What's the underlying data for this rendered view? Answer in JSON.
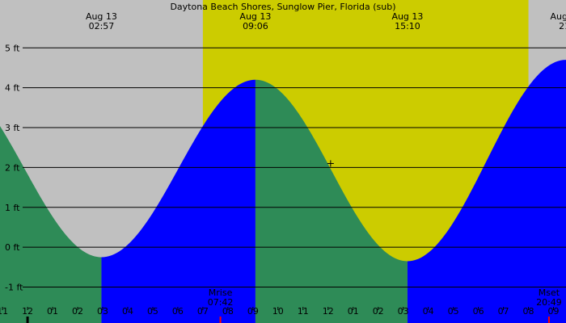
{
  "chart_data": {
    "type": "area",
    "title": "Daytona Beach Shores, Sunglow Pier, Florida (sub)",
    "xlabel": "",
    "ylabel": "",
    "unit": "ft",
    "ylim": [
      -1.9,
      6.2
    ],
    "xlim_hours": [
      -1.1,
      21.5
    ],
    "y_ticks": [
      "5 ft",
      "4 ft",
      "3 ft",
      "2 ft",
      "1 ft",
      "0 ft",
      "-1 ft"
    ],
    "y_tick_values": [
      5,
      4,
      3,
      2,
      1,
      0,
      -1
    ],
    "x_ticks": [
      "11",
      "12",
      "01",
      "02",
      "03",
      "04",
      "05",
      "06",
      "07",
      "08",
      "09",
      "10",
      "11",
      "12",
      "01",
      "02",
      "03",
      "04",
      "05",
      "06",
      "07",
      "08",
      "09"
    ],
    "x_tick_hours": [
      -1,
      0,
      1,
      2,
      3,
      4,
      5,
      6,
      7,
      8,
      9,
      10,
      11,
      12,
      13,
      14,
      15,
      16,
      17,
      18,
      19,
      20,
      21
    ],
    "tide_events": [
      {
        "date": "Aug 13",
        "time": "02:57",
        "hour": 2.95,
        "height": -0.25,
        "type": "low"
      },
      {
        "date": "Aug 13",
        "time": "09:06",
        "hour": 9.1,
        "height": 4.2,
        "type": "high"
      },
      {
        "date": "Aug 13",
        "time": "15:10",
        "hour": 15.17,
        "height": -0.35,
        "type": "low"
      },
      {
        "date": "Aug 13",
        "time": "21:",
        "hour": 21.5,
        "height": 4.7,
        "type": "high"
      }
    ],
    "start_hour": -1.1,
    "start_height": 3.5,
    "daylight": [
      7.0,
      20.0
    ],
    "sun_events": [
      {
        "label": "Mrise",
        "time": "07:42",
        "hour": 7.7
      },
      {
        "label": "Mset",
        "time": "20:49",
        "hour": 20.82
      }
    ],
    "cursor": {
      "hour": 12.1,
      "height": 2.1
    },
    "colors": {
      "night": "#c0c0c0",
      "day": "#cccc00",
      "falling": "#2e8b57",
      "rising": "#0000ff",
      "grid": "#000000",
      "sun_tick": "#ff0000"
    }
  }
}
